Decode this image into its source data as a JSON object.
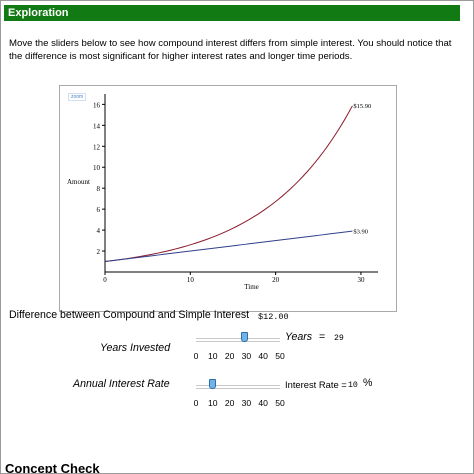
{
  "header": {
    "title": "Exploration"
  },
  "intro": {
    "text": "Move the sliders below to see how compound interest differs from simple interest.  You should notice that the difference is most significant for higher interest rates and longer time periods."
  },
  "plot": {
    "zoom_label": "zoom",
    "y_axis_label": "Amount",
    "x_axis_label": "Time"
  },
  "chart_data": {
    "type": "line",
    "xlabel": "Time",
    "ylabel": "Amount",
    "xlim": [
      0,
      32
    ],
    "ylim": [
      0,
      16.8
    ],
    "x_ticks": [
      0,
      10,
      20,
      30
    ],
    "y_ticks": [
      2,
      4,
      6,
      8,
      10,
      12,
      14,
      16
    ],
    "series": [
      {
        "name": "compound",
        "color": "#8b1a2a",
        "principal": 1,
        "rate": 0.1,
        "x_end": 29,
        "end_label": "$15.90",
        "end_value": 15.9
      },
      {
        "name": "simple",
        "color": "#2f3f8a",
        "principal": 1,
        "rate": 0.1,
        "x_end": 29,
        "end_label": "$3.90",
        "end_value": 3.9
      }
    ]
  },
  "difference": {
    "label": "Difference between Compound and Simple Interest",
    "value": "$12.00"
  },
  "years_slider": {
    "label": "Years Invested",
    "readout_label": "Years",
    "readout_eq": "=",
    "value": "29",
    "fraction": 0.58,
    "ticks": [
      "0",
      "10",
      "20",
      "30",
      "40",
      "50"
    ]
  },
  "rate_slider": {
    "label": "Annual Interest Rate",
    "readout_label": "Interest Rate =",
    "value": "10",
    "unit": "%",
    "fraction": 0.2,
    "ticks": [
      "0",
      "10",
      "20",
      "30",
      "40",
      "50"
    ]
  },
  "next_section": {
    "title": "Concept Check"
  }
}
